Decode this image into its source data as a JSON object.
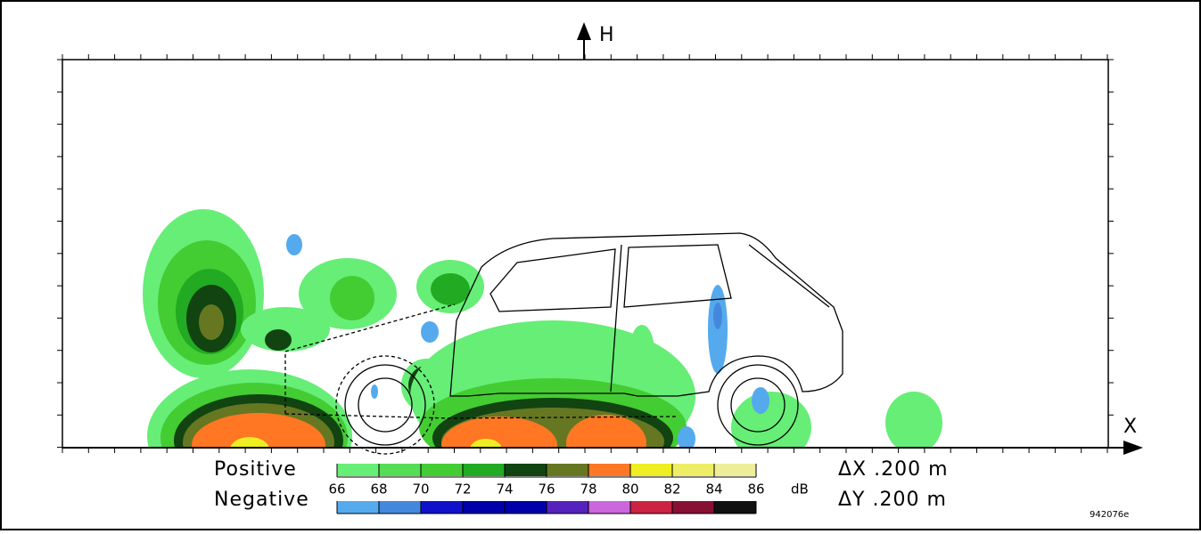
{
  "axes": {
    "vertical_label": "H",
    "horizontal_label": "X"
  },
  "legend": {
    "positive_label": "Positive",
    "negative_label": "Negative",
    "levels": [
      66,
      68,
      70,
      72,
      74,
      76,
      78,
      80,
      82,
      84,
      86
    ],
    "unit": "dB",
    "positive_colors": [
      "#66ee77",
      "#55dd55",
      "#44cc33",
      "#22aa22",
      "#114411",
      "#667722",
      "#ff7722",
      "#eeee22",
      "#eeee66",
      "#eeee99"
    ],
    "negative_colors": [
      "#55aaee",
      "#4488dd",
      "#1111cc",
      "#0000aa",
      "#0000aa",
      "#5522bb",
      "#cc66dd",
      "#cc2244",
      "#881133",
      "#111111"
    ]
  },
  "resolution": {
    "dx": "ΔX .200 m",
    "dy": "ΔY .200 m"
  },
  "figure_id": "942076e"
}
